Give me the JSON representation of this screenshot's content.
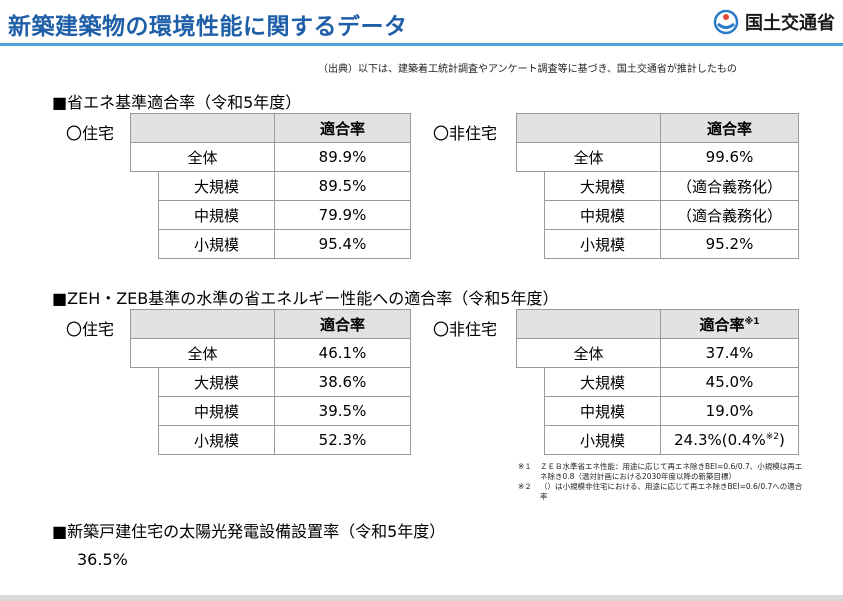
{
  "header": {
    "title": "新築建築物の環境性能に関するデータ",
    "logo_text": "国土交通省",
    "accent_color": "#1f5fa8",
    "logo_icon": "mlit-logo-icon"
  },
  "source_note": "（出典）以下は、建築着工統計調査やアンケート調査等に基づき、国土交通省が推計したもの",
  "sections": [
    {
      "heading": "■省エネ基準適合率（令和5年度）",
      "residential": {
        "label": "〇住宅",
        "header": "適合率",
        "rows": [
          {
            "label": "全体",
            "value": "89.9%"
          },
          {
            "label": "大規模",
            "value": "89.5%"
          },
          {
            "label": "中規模",
            "value": "79.9%"
          },
          {
            "label": "小規模",
            "value": "95.4%"
          }
        ]
      },
      "nonresidential": {
        "label": "〇非住宅",
        "header": "適合率",
        "rows": [
          {
            "label": "全体",
            "value": "99.6%"
          },
          {
            "label": "大規模",
            "value": "（適合義務化）"
          },
          {
            "label": "中規模",
            "value": "（適合義務化）"
          },
          {
            "label": "小規模",
            "value": "95.2%"
          }
        ]
      }
    },
    {
      "heading": "■ZEH・ZEB基準の水準の省エネルギー性能への適合率（令和5年度）",
      "residential": {
        "label": "〇住宅",
        "header": "適合率",
        "rows": [
          {
            "label": "全体",
            "value": "46.1%"
          },
          {
            "label": "大規模",
            "value": "38.6%"
          },
          {
            "label": "中規模",
            "value": "39.5%"
          },
          {
            "label": "小規模",
            "value": "52.3%"
          }
        ]
      },
      "nonresidential": {
        "label": "〇非住宅",
        "header": "適合率",
        "header_sup": "※1",
        "rows": [
          {
            "label": "全体",
            "value": "37.4%"
          },
          {
            "label": "大規模",
            "value": "45.0%"
          },
          {
            "label": "中規模",
            "value": "19.0%"
          },
          {
            "label": "小規模",
            "value": "24.3%(0.4%",
            "value_sup": "※2",
            "value_tail": ")"
          }
        ]
      }
    }
  ],
  "notes": [
    {
      "mark": "※１",
      "text": "ＺＥＢ水準省エネ性能：用途に応じて再エネ除きBEI=0.6/0.7、小規模は再エネ除き0.8（温対計画における2030年度以降の新築目標）"
    },
    {
      "mark": "※２",
      "text": "（）は小規模非住宅における、用途に応じて再エネ除きBEI=0.6/0.7への適合率"
    }
  ],
  "solar": {
    "heading": "■新築戸建住宅の太陽光発電設備設置率（令和5年度）",
    "value": "36.5%"
  }
}
